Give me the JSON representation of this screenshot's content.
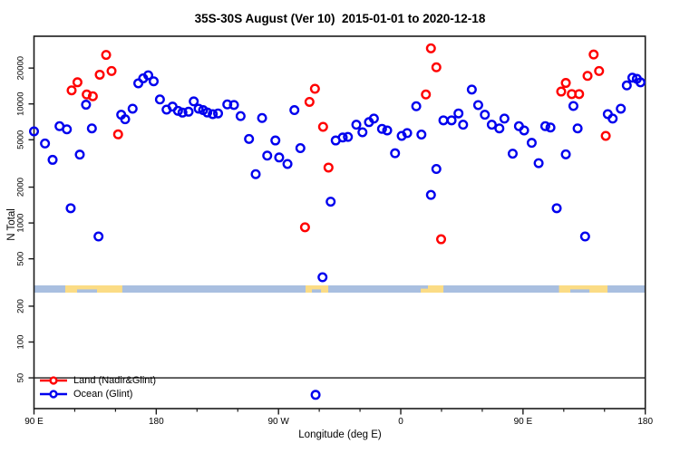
{
  "title": "35S-30S August (Ver 10)  2015-01-01 to 2020-12-18",
  "legend": {
    "items": [
      {
        "label": "Land (Nadir&Glint)",
        "color": "#FF0000"
      },
      {
        "label": "Ocean (Glint)",
        "color": "#0000EE"
      }
    ]
  },
  "colors": {
    "land_points": "#FF0000",
    "ocean_points": "#0000EE",
    "band_ocean": "#A9BFE0",
    "band_land": "#FBDC85",
    "axis": "#1A1A1A"
  },
  "chart_data": {
    "type": "scatter",
    "title": "35S-30S August (Ver 10)  2015-01-01 to 2020-12-18",
    "xlabel": "Longitude (deg E)",
    "ylabel": "N Total",
    "y_scale": "log",
    "y_range": [
      30,
      40000
    ],
    "y_ticks": [
      50,
      100,
      200,
      500,
      1000,
      2000,
      5000,
      10000,
      20000
    ],
    "x_axis_span_deg": 450,
    "x_ticks": [
      {
        "deg": 0,
        "label": "90 E"
      },
      {
        "deg": 90,
        "label": "180"
      },
      {
        "deg": 180,
        "label": "90 W"
      },
      {
        "deg": 270,
        "label": "0"
      },
      {
        "deg": 360,
        "label": "90 E"
      },
      {
        "deg": 450,
        "label": "180"
      }
    ],
    "x_minor_tick_every_deg": 30,
    "threshold_line_n": 50,
    "map_band": {
      "description": "latitude-strip world map: ocean base with land patches",
      "segments": [
        {
          "type": "land",
          "from_deg": 23.0,
          "to_deg": 65.0,
          "notches": [
            {
              "from_deg": 31.7,
              "to_deg": 46.4,
              "side": "bottom"
            }
          ]
        },
        {
          "type": "land",
          "from_deg": 199.9,
          "to_deg": 216.6,
          "notches": [
            {
              "from_deg": 204.6,
              "to_deg": 211.3,
              "side": "bottom"
            }
          ]
        },
        {
          "type": "land",
          "from_deg": 284.7,
          "to_deg": 301.4,
          "notches": [
            {
              "from_deg": 284.7,
              "to_deg": 290.0,
              "side": "top"
            }
          ]
        },
        {
          "type": "land",
          "from_deg": 386.5,
          "to_deg": 422.2,
          "notches": [
            {
              "from_deg": 394.8,
              "to_deg": 408.9,
              "side": "bottom"
            }
          ]
        }
      ]
    },
    "series": [
      {
        "name": "Land (Nadir&Glint)",
        "color": "#FF0000",
        "points": [
          [
            27.7,
            13000
          ],
          [
            32,
            15200
          ],
          [
            38.8,
            12000
          ],
          [
            43.3,
            11600
          ],
          [
            48.4,
            17600
          ],
          [
            53.1,
            25800
          ],
          [
            57.1,
            18900
          ],
          [
            61.9,
            5550
          ],
          [
            199.5,
            920
          ],
          [
            202.8,
            10400
          ],
          [
            206.8,
            13400
          ],
          [
            212.8,
            6420
          ],
          [
            216.8,
            2920
          ],
          [
            288.5,
            12000
          ],
          [
            292.2,
            29300
          ],
          [
            296.2,
            20300
          ],
          [
            299.7,
            730
          ],
          [
            388.1,
            12700
          ],
          [
            391.5,
            15000
          ],
          [
            395.9,
            12100
          ],
          [
            401.3,
            12100
          ],
          [
            407.5,
            17200
          ],
          [
            412,
            26000
          ],
          [
            416,
            18900
          ],
          [
            420.9,
            5390
          ]
        ]
      },
      {
        "name": "Ocean (Glint)",
        "color": "#0000EE",
        "points": [
          [
            0,
            5880
          ],
          [
            8.1,
            4650
          ],
          [
            13.7,
            3390
          ],
          [
            18.8,
            6500
          ],
          [
            24.2,
            6120
          ],
          [
            27,
            1330
          ],
          [
            33.7,
            3750
          ],
          [
            38.3,
            9850
          ],
          [
            42.6,
            6230
          ],
          [
            47.5,
            770
          ],
          [
            64.2,
            8110
          ],
          [
            67.1,
            7430
          ],
          [
            72.6,
            9120
          ],
          [
            76.8,
            14900
          ],
          [
            80.4,
            16400
          ],
          [
            84.1,
            17400
          ],
          [
            88.1,
            15500
          ],
          [
            92.7,
            10900
          ],
          [
            97.6,
            8960
          ],
          [
            102,
            9490
          ],
          [
            106,
            8750
          ],
          [
            109.3,
            8450
          ],
          [
            113.8,
            8600
          ],
          [
            117.6,
            10500
          ],
          [
            121.2,
            9120
          ],
          [
            124.5,
            8870
          ],
          [
            127.6,
            8470
          ],
          [
            131.6,
            8210
          ],
          [
            135.5,
            8320
          ],
          [
            142.3,
            9900
          ],
          [
            147.2,
            9800
          ],
          [
            152.1,
            7900
          ],
          [
            158.3,
            5080
          ],
          [
            163.2,
            2570
          ],
          [
            167.9,
            7610
          ],
          [
            171.7,
            3680
          ],
          [
            177.7,
            4930
          ],
          [
            180.5,
            3550
          ],
          [
            186.6,
            3130
          ],
          [
            191.7,
            8870
          ],
          [
            196.1,
            4250
          ],
          [
            207.3,
            36
          ],
          [
            212.4,
            350
          ],
          [
            218.4,
            1510
          ],
          [
            222.1,
            4930
          ],
          [
            227.3,
            5220
          ],
          [
            231.1,
            5280
          ],
          [
            237.3,
            6690
          ],
          [
            241.8,
            5780
          ],
          [
            246.6,
            7030
          ],
          [
            250.2,
            7530
          ],
          [
            256.2,
            6170
          ],
          [
            260,
            5990
          ],
          [
            265.8,
            3850
          ],
          [
            270.7,
            5390
          ],
          [
            274.7,
            5690
          ],
          [
            281.4,
            9560
          ],
          [
            285.2,
            5530
          ],
          [
            292.2,
            1720
          ],
          [
            296.2,
            2840
          ],
          [
            301.4,
            7280
          ],
          [
            307.4,
            7280
          ],
          [
            312.5,
            8320
          ],
          [
            315.9,
            6690
          ],
          [
            322.3,
            13200
          ],
          [
            327,
            9780
          ],
          [
            331.9,
            8110
          ],
          [
            337,
            6690
          ],
          [
            342.6,
            6230
          ],
          [
            346.3,
            7530
          ],
          [
            352.4,
            3820
          ],
          [
            357,
            6500
          ],
          [
            360.8,
            5990
          ],
          [
            366.4,
            4710
          ],
          [
            371.5,
            3180
          ],
          [
            376.4,
            6500
          ],
          [
            380.2,
            6340
          ],
          [
            384.8,
            1330
          ],
          [
            391.5,
            3770
          ],
          [
            397.1,
            9610
          ],
          [
            400.2,
            6230
          ],
          [
            405.7,
            770
          ],
          [
            422.4,
            8210
          ],
          [
            426,
            7530
          ],
          [
            432,
            9120
          ],
          [
            436.4,
            14300
          ],
          [
            440.5,
            16600
          ],
          [
            443.8,
            16250
          ],
          [
            446.5,
            15190
          ]
        ]
      }
    ]
  }
}
